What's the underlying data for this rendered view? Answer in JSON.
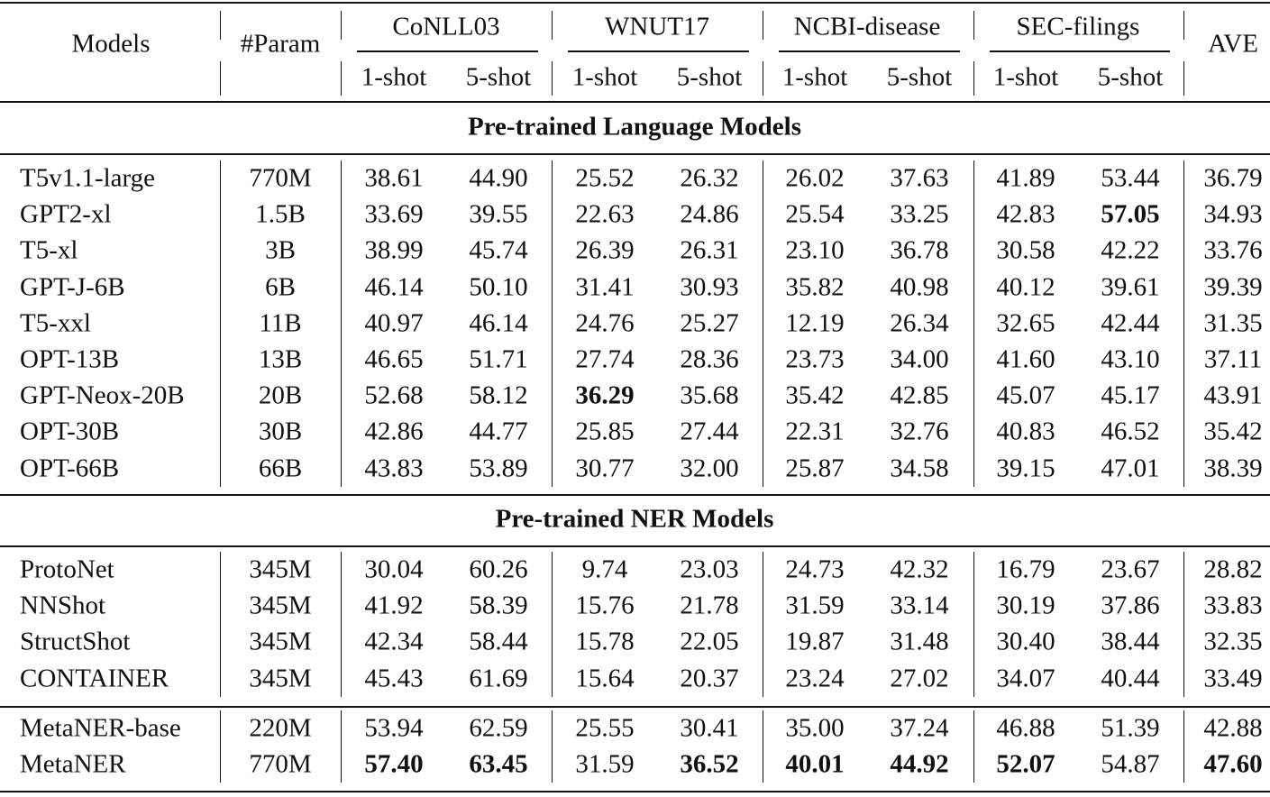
{
  "header": {
    "models": "Models",
    "param": "#Param",
    "datasets": [
      "CoNLL03",
      "WNUT17",
      "NCBI-disease",
      "SEC-filings"
    ],
    "shots": [
      "1-shot",
      "5-shot",
      "1-shot",
      "5-shot",
      "1-shot",
      "5-shot",
      "1-shot",
      "5-shot"
    ],
    "ave": "AVE"
  },
  "sections": [
    {
      "title": "Pre-trained Language Models",
      "rows": [
        [
          "T5v1.1-large",
          "770M",
          "38.61",
          "44.90",
          "25.52",
          "26.32",
          "26.02",
          "37.63",
          "41.89",
          "53.44",
          "36.79"
        ],
        [
          "GPT2-xl",
          "1.5B",
          "33.69",
          "39.55",
          "22.63",
          "24.86",
          "25.54",
          "33.25",
          "42.83",
          "57.05",
          "34.93"
        ],
        [
          "T5-xl",
          "3B",
          "38.99",
          "45.74",
          "26.39",
          "26.31",
          "23.10",
          "36.78",
          "30.58",
          "42.22",
          "33.76"
        ],
        [
          "GPT-J-6B",
          "6B",
          "46.14",
          "50.10",
          "31.41",
          "30.93",
          "35.82",
          "40.98",
          "40.12",
          "39.61",
          "39.39"
        ],
        [
          "T5-xxl",
          "11B",
          "40.97",
          "46.14",
          "24.76",
          "25.27",
          "12.19",
          "26.34",
          "32.65",
          "42.44",
          "31.35"
        ],
        [
          "OPT-13B",
          "13B",
          "46.65",
          "51.71",
          "27.74",
          "28.36",
          "23.73",
          "34.00",
          "41.60",
          "43.10",
          "37.11"
        ],
        [
          "GPT-Neox-20B",
          "20B",
          "52.68",
          "58.12",
          "36.29",
          "35.68",
          "35.42",
          "42.85",
          "45.07",
          "45.17",
          "43.91"
        ],
        [
          "OPT-30B",
          "30B",
          "42.86",
          "44.77",
          "25.85",
          "27.44",
          "22.31",
          "32.76",
          "40.83",
          "46.52",
          "35.42"
        ],
        [
          "OPT-66B",
          "66B",
          "43.83",
          "53.89",
          "30.77",
          "32.00",
          "25.87",
          "34.58",
          "39.15",
          "47.01",
          "38.39"
        ]
      ],
      "bold": [
        [
          1,
          9
        ],
        [
          6,
          4
        ]
      ]
    },
    {
      "title": "Pre-trained NER Models",
      "rows": [
        [
          "ProtoNet",
          "345M",
          "30.04",
          "60.26",
          "9.74",
          "23.03",
          "24.73",
          "42.32",
          "16.79",
          "23.67",
          "28.82"
        ],
        [
          "NNShot",
          "345M",
          "41.92",
          "58.39",
          "15.76",
          "21.78",
          "31.59",
          "33.14",
          "30.19",
          "37.86",
          "33.83"
        ],
        [
          "StructShot",
          "345M",
          "42.34",
          "58.44",
          "15.78",
          "22.05",
          "19.87",
          "31.48",
          "30.40",
          "38.44",
          "32.35"
        ],
        [
          "CONTAINER",
          "345M",
          "45.43",
          "61.69",
          "15.64",
          "20.37",
          "23.24",
          "27.02",
          "34.07",
          "40.44",
          "33.49"
        ]
      ],
      "bold": []
    },
    {
      "rows": [
        [
          "MetaNER-base",
          "220M",
          "53.94",
          "62.59",
          "25.55",
          "30.41",
          "35.00",
          "37.24",
          "46.88",
          "51.39",
          "42.88"
        ],
        [
          "MetaNER",
          "770M",
          "57.40",
          "63.45",
          "31.59",
          "36.52",
          "40.01",
          "44.92",
          "52.07",
          "54.87",
          "47.60"
        ]
      ],
      "bold": [
        [
          1,
          2
        ],
        [
          1,
          3
        ],
        [
          1,
          5
        ],
        [
          1,
          6
        ],
        [
          1,
          7
        ],
        [
          1,
          8
        ],
        [
          1,
          10
        ]
      ]
    }
  ]
}
